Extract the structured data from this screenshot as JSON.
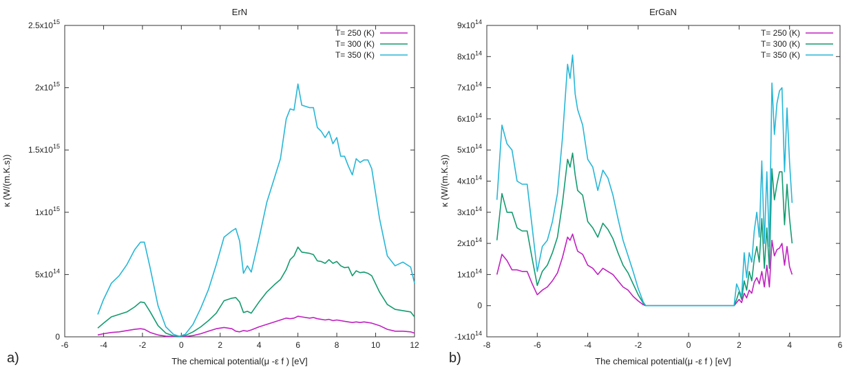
{
  "chart_data": [
    {
      "type": "line",
      "panel_label": "a)",
      "title": "ErN",
      "xlabel": "The chemical potential(μ -ε f ) [eV]",
      "ylabel": "κ (W/(m.K.s))",
      "xlim": [
        -6,
        12
      ],
      "ylim": [
        0,
        2500000000000000.0
      ],
      "xticks": [
        -6,
        -4,
        -2,
        0,
        2,
        4,
        6,
        8,
        10,
        12
      ],
      "xtick_labels": [
        "-6",
        "-4",
        "-2",
        "0",
        "2",
        "4",
        "6",
        "8",
        "10",
        "12"
      ],
      "yticks": [
        0,
        500000000000000.0,
        1000000000000000.0,
        1500000000000000.0,
        2000000000000000.0,
        2500000000000000.0
      ],
      "ytick_labels": [
        {
          "base": "0",
          "exp": ""
        },
        {
          "base": "5x10",
          "exp": "14"
        },
        {
          "base": "1x10",
          "exp": "15"
        },
        {
          "base": "1.5x10",
          "exp": "15"
        },
        {
          "base": "2x10",
          "exp": "15"
        },
        {
          "base": "2.5x10",
          "exp": "15"
        }
      ],
      "legend_position": "top-right",
      "x": [
        -4.3,
        -4.0,
        -3.6,
        -3.2,
        -2.8,
        -2.4,
        -2.1,
        -1.9,
        -1.6,
        -1.2,
        -0.8,
        -0.4,
        -0.1,
        0.2,
        0.6,
        1.0,
        1.4,
        1.8,
        2.2,
        2.6,
        2.8,
        3.0,
        3.2,
        3.4,
        3.6,
        4.0,
        4.4,
        4.8,
        5.1,
        5.4,
        5.6,
        5.8,
        6.0,
        6.2,
        6.6,
        6.8,
        7.0,
        7.2,
        7.4,
        7.6,
        7.8,
        8.0,
        8.2,
        8.4,
        8.6,
        8.8,
        9.0,
        9.2,
        9.4,
        9.6,
        9.8,
        10.2,
        10.6,
        11.0,
        11.4,
        11.8,
        12.0
      ],
      "series": [
        {
          "name": "T= 250 (K)",
          "color": "#c020c0",
          "values": [
            15000000000000.0,
            25000000000000.0,
            35000000000000.0,
            40000000000000.0,
            50000000000000.0,
            60000000000000.0,
            65000000000000.0,
            60000000000000.0,
            35000000000000.0,
            15000000000000.0,
            5000000000000.0,
            2000000000000.0,
            1000000000000.0,
            3000000000000.0,
            10000000000000.0,
            25000000000000.0,
            45000000000000.0,
            65000000000000.0,
            75000000000000.0,
            65000000000000.0,
            45000000000000.0,
            40000000000000.0,
            50000000000000.0,
            45000000000000.0,
            55000000000000.0,
            80000000000000.0,
            100000000000000.0,
            120000000000000.0,
            135000000000000.0,
            150000000000000.0,
            145000000000000.0,
            150000000000000.0,
            165000000000000.0,
            160000000000000.0,
            150000000000000.0,
            155000000000000.0,
            145000000000000.0,
            140000000000000.0,
            135000000000000.0,
            140000000000000.0,
            130000000000000.0,
            135000000000000.0,
            130000000000000.0,
            125000000000000.0,
            120000000000000.0,
            115000000000000.0,
            120000000000000.0,
            115000000000000.0,
            120000000000000.0,
            115000000000000.0,
            110000000000000.0,
            90000000000000.0,
            60000000000000.0,
            45000000000000.0,
            45000000000000.0,
            40000000000000.0,
            30000000000000.0
          ]
        },
        {
          "name": "T= 300 (K)",
          "color": "#129a6f",
          "values": [
            70000000000000.0,
            110000000000000.0,
            160000000000000.0,
            180000000000000.0,
            200000000000000.0,
            240000000000000.0,
            280000000000000.0,
            275000000000000.0,
            200000000000000.0,
            90000000000000.0,
            30000000000000.0,
            8000000000000.0,
            2000000000000.0,
            10000000000000.0,
            40000000000000.0,
            80000000000000.0,
            130000000000000.0,
            190000000000000.0,
            290000000000000.0,
            310000000000000.0,
            315000000000000.0,
            280000000000000.0,
            195000000000000.0,
            205000000000000.0,
            190000000000000.0,
            280000000000000.0,
            360000000000000.0,
            420000000000000.0,
            460000000000000.0,
            540000000000000.0,
            620000000000000.0,
            650000000000000.0,
            720000000000000.0,
            680000000000000.0,
            670000000000000.0,
            660000000000000.0,
            610000000000000.0,
            605000000000000.0,
            590000000000000.0,
            620000000000000.0,
            590000000000000.0,
            605000000000000.0,
            570000000000000.0,
            555000000000000.0,
            560000000000000.0,
            490000000000000.0,
            530000000000000.0,
            515000000000000.0,
            520000000000000.0,
            510000000000000.0,
            490000000000000.0,
            360000000000000.0,
            260000000000000.0,
            220000000000000.0,
            210000000000000.0,
            200000000000000.0,
            160000000000000.0
          ]
        },
        {
          "name": "T= 350 (K)",
          "color": "#25b6d6",
          "values": [
            180000000000000.0,
            300000000000000.0,
            430000000000000.0,
            490000000000000.0,
            580000000000000.0,
            700000000000000.0,
            760000000000000.0,
            760000000000000.0,
            550000000000000.0,
            250000000000000.0,
            80000000000000.0,
            20000000000000.0,
            5000000000000.0,
            20000000000000.0,
            100000000000000.0,
            230000000000000.0,
            380000000000000.0,
            580000000000000.0,
            800000000000000.0,
            850000000000000.0,
            870000000000000.0,
            770000000000000.0,
            510000000000000.0,
            570000000000000.0,
            520000000000000.0,
            790000000000000.0,
            1080000000000000.0,
            1280000000000000.0,
            1430000000000000.0,
            1750000000000000.0,
            1830000000000000.0,
            1820000000000000.0,
            2030000000000000.0,
            1860000000000000.0,
            1840000000000000.0,
            1840000000000000.0,
            1680000000000000.0,
            1650000000000000.0,
            1600000000000000.0,
            1650000000000000.0,
            1550000000000000.0,
            1600000000000000.0,
            1450000000000000.0,
            1450000000000000.0,
            1370000000000000.0,
            1300000000000000.0,
            1430000000000000.0,
            1400000000000000.0,
            1420000000000000.0,
            1420000000000000.0,
            1350000000000000.0,
            950000000000000.0,
            650000000000000.0,
            570000000000000.0,
            600000000000000.0,
            560000000000000.0,
            430000000000000.0
          ]
        }
      ]
    },
    {
      "type": "line",
      "panel_label": "b)",
      "title": "ErGaN",
      "xlabel": "The chemical potential(μ -ε f ) [eV]",
      "ylabel": "κ (W/(m.K.s))",
      "xlim": [
        -8,
        6
      ],
      "ylim": [
        -100000000000000.0,
        900000000000000.0
      ],
      "xticks": [
        -8,
        -6,
        -4,
        -2,
        0,
        2,
        4,
        6
      ],
      "xtick_labels": [
        "-8",
        "-6",
        "-4",
        "-2",
        "0",
        "2",
        "4",
        "6"
      ],
      "yticks": [
        -100000000000000.0,
        0,
        100000000000000.0,
        200000000000000.0,
        300000000000000.0,
        400000000000000.0,
        500000000000000.0,
        600000000000000.0,
        700000000000000.0,
        800000000000000.0,
        900000000000000.0
      ],
      "ytick_labels": [
        {
          "base": "-1x10",
          "exp": "14"
        },
        {
          "base": "0",
          "exp": ""
        },
        {
          "base": "1x10",
          "exp": "14"
        },
        {
          "base": "2x10",
          "exp": "14"
        },
        {
          "base": "3x10",
          "exp": "14"
        },
        {
          "base": "4x10",
          "exp": "14"
        },
        {
          "base": "5x10",
          "exp": "14"
        },
        {
          "base": "6x10",
          "exp": "14"
        },
        {
          "base": "7x10",
          "exp": "14"
        },
        {
          "base": "8x10",
          "exp": "14"
        },
        {
          "base": "9x10",
          "exp": "14"
        }
      ],
      "legend_position": "top-right",
      "x": [
        -7.6,
        -7.4,
        -7.2,
        -7.0,
        -6.8,
        -6.6,
        -6.4,
        -6.2,
        -6.0,
        -5.8,
        -5.6,
        -5.4,
        -5.2,
        -5.0,
        -4.8,
        -4.7,
        -4.6,
        -4.5,
        -4.4,
        -4.2,
        -4.0,
        -3.8,
        -3.6,
        -3.4,
        -3.2,
        -3.0,
        -2.8,
        -2.6,
        -2.4,
        -2.2,
        -2.0,
        -1.8,
        -1.7,
        0.0,
        1.8,
        1.9,
        2.0,
        2.1,
        2.2,
        2.3,
        2.4,
        2.5,
        2.6,
        2.7,
        2.8,
        2.9,
        3.0,
        3.1,
        3.2,
        3.3,
        3.4,
        3.5,
        3.6,
        3.7,
        3.8,
        3.9,
        4.0,
        4.1
      ],
      "series": [
        {
          "name": "T= 250 (K)",
          "color": "#c020c0",
          "values": [
            100000000000000.0,
            165000000000000.0,
            145000000000000.0,
            115000000000000.0,
            115000000000000.0,
            110000000000000.0,
            110000000000000.0,
            70000000000000.0,
            35000000000000.0,
            50000000000000.0,
            60000000000000.0,
            80000000000000.0,
            105000000000000.0,
            155000000000000.0,
            220000000000000.0,
            210000000000000.0,
            230000000000000.0,
            200000000000000.0,
            175000000000000.0,
            165000000000000.0,
            130000000000000.0,
            120000000000000.0,
            100000000000000.0,
            120000000000000.0,
            110000000000000.0,
            100000000000000.0,
            80000000000000.0,
            60000000000000.0,
            50000000000000.0,
            30000000000000.0,
            15000000000000.0,
            3000000000000.0,
            0,
            0,
            0,
            10000000000000.0,
            20000000000000.0,
            10000000000000.0,
            40000000000000.0,
            25000000000000.0,
            50000000000000.0,
            40000000000000.0,
            75000000000000.0,
            90000000000000.0,
            70000000000000.0,
            110000000000000.0,
            60000000000000.0,
            130000000000000.0,
            60000000000000.0,
            210000000000000.0,
            160000000000000.0,
            180000000000000.0,
            185000000000000.0,
            200000000000000.0,
            130000000000000.0,
            190000000000000.0,
            125000000000000.0,
            100000000000000.0
          ]
        },
        {
          "name": "T= 300 (K)",
          "color": "#129a6f",
          "values": [
            210000000000000.0,
            360000000000000.0,
            300000000000000.0,
            300000000000000.0,
            250000000000000.0,
            240000000000000.0,
            240000000000000.0,
            150000000000000.0,
            65000000000000.0,
            110000000000000.0,
            130000000000000.0,
            170000000000000.0,
            220000000000000.0,
            330000000000000.0,
            470000000000000.0,
            445000000000000.0,
            490000000000000.0,
            420000000000000.0,
            370000000000000.0,
            355000000000000.0,
            270000000000000.0,
            250000000000000.0,
            220000000000000.0,
            265000000000000.0,
            245000000000000.0,
            215000000000000.0,
            170000000000000.0,
            130000000000000.0,
            105000000000000.0,
            70000000000000.0,
            35000000000000.0,
            8000000000000.0,
            0,
            0,
            0,
            20000000000000.0,
            45000000000000.0,
            20000000000000.0,
            80000000000000.0,
            50000000000000.0,
            110000000000000.0,
            80000000000000.0,
            150000000000000.0,
            190000000000000.0,
            140000000000000.0,
            280000000000000.0,
            120000000000000.0,
            250000000000000.0,
            120000000000000.0,
            440000000000000.0,
            340000000000000.0,
            390000000000000.0,
            430000000000000.0,
            430000000000000.0,
            260000000000000.0,
            390000000000000.0,
            280000000000000.0,
            200000000000000.0
          ]
        },
        {
          "name": "T= 350 (K)",
          "color": "#25b6d6",
          "values": [
            340000000000000.0,
            580000000000000.0,
            520000000000000.0,
            500000000000000.0,
            400000000000000.0,
            390000000000000.0,
            390000000000000.0,
            250000000000000.0,
            110000000000000.0,
            190000000000000.0,
            210000000000000.0,
            270000000000000.0,
            360000000000000.0,
            540000000000000.0,
            775000000000000.0,
            730000000000000.0,
            805000000000000.0,
            680000000000000.0,
            630000000000000.0,
            580000000000000.0,
            470000000000000.0,
            445000000000000.0,
            370000000000000.0,
            435000000000000.0,
            410000000000000.0,
            355000000000000.0,
            280000000000000.0,
            210000000000000.0,
            160000000000000.0,
            110000000000000.0,
            55000000000000.0,
            12000000000000.0,
            0,
            0,
            0,
            70000000000000.0,
            50000000000000.0,
            30000000000000.0,
            170000000000000.0,
            90000000000000.0,
            170000000000000.0,
            140000000000000.0,
            240000000000000.0,
            300000000000000.0,
            220000000000000.0,
            465000000000000.0,
            200000000000000.0,
            430000000000000.0,
            190000000000000.0,
            715000000000000.0,
            550000000000000.0,
            650000000000000.0,
            690000000000000.0,
            700000000000000.0,
            430000000000000.0,
            635000000000000.0,
            460000000000000.0,
            330000000000000.0
          ]
        }
      ]
    }
  ]
}
